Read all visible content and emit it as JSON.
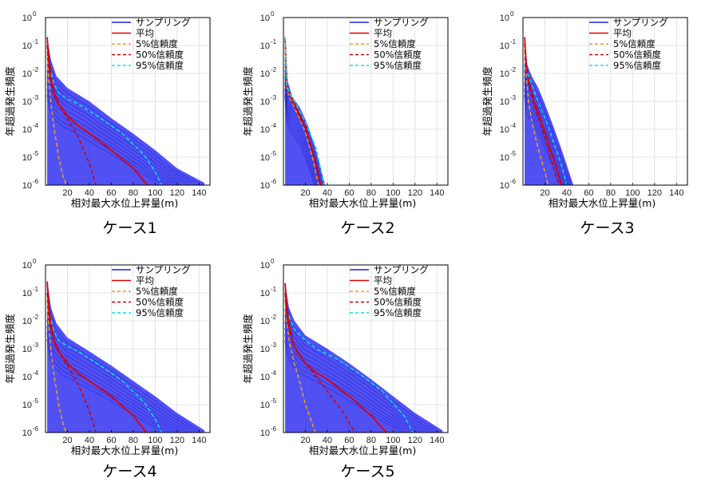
{
  "figure": {
    "ylabel": "年超過発生頻度",
    "xlabel": "相対最大水位上昇量(m)",
    "legend": [
      {
        "label": "サンプリング",
        "color": "#2222dd",
        "dash": "solid"
      },
      {
        "label": "平均",
        "color": "#dd0000",
        "dash": "solid"
      },
      {
        "label": " 5%信頼度",
        "color": "#e8a020",
        "dash": "dashed"
      },
      {
        "label": "50%信頼度",
        "color": "#cc0000",
        "dash": "dashed"
      },
      {
        "label": "95%信頼度",
        "color": "#00e5ee",
        "dash": "dashed"
      }
    ]
  },
  "chart_data": [
    {
      "type": "line",
      "caption": "ケース1",
      "xlim": [
        0,
        150
      ],
      "ylim": [
        1e-06,
        1
      ],
      "yscale": "log",
      "x_ticks": [
        20,
        40,
        60,
        80,
        100,
        120,
        140
      ],
      "y_tick_exponents": [
        0,
        -1,
        -2,
        -3,
        -4,
        -5,
        -6
      ],
      "sampling_spread": [
        [
          1.5,
          0.2
        ],
        [
          5,
          0.03
        ],
        [
          10,
          0.008
        ],
        [
          20,
          0.003
        ],
        [
          40,
          0.001
        ],
        [
          60,
          0.00025
        ],
        [
          80,
          7e-05
        ],
        [
          100,
          1.8e-05
        ],
        [
          120,
          4e-06
        ],
        [
          145,
          1.2e-06
        ]
      ],
      "series": [
        {
          "name": "平均",
          "x": [
            1.5,
            3,
            5,
            8,
            12,
            20,
            30,
            40,
            60,
            80,
            93
          ],
          "y": [
            0.2,
            0.03,
            0.008,
            0.002,
            0.0008,
            0.0003,
            0.00013,
            7e-05,
            1.8e-05,
            4e-06,
            1e-06
          ]
        },
        {
          "name": " 5%信頼度",
          "x": [
            1.5,
            3,
            5,
            8,
            12,
            16,
            19
          ],
          "y": [
            0.05,
            0.006,
            0.0008,
            0.0001,
            1e-05,
            2e-06,
            1e-06
          ]
        },
        {
          "name": "50%信頼度",
          "x": [
            1.5,
            3,
            5,
            10,
            20,
            30,
            40,
            46
          ],
          "y": [
            0.1,
            0.015,
            0.004,
            0.001,
            0.00025,
            5e-05,
            6e-06,
            1e-06
          ]
        },
        {
          "name": "95%信頼度",
          "x": [
            5,
            8,
            12,
            20,
            30,
            50,
            70,
            90,
            100,
            106
          ],
          "y": [
            0.01,
            0.004,
            0.002,
            0.0012,
            0.0008,
            0.00025,
            7e-05,
            1.2e-05,
            3e-06,
            1e-06
          ]
        }
      ]
    },
    {
      "type": "line",
      "caption": "ケース2",
      "xlim": [
        0,
        150
      ],
      "ylim": [
        1e-06,
        1
      ],
      "yscale": "log",
      "x_ticks": [
        20,
        40,
        60,
        80,
        100,
        120,
        140
      ],
      "y_tick_exponents": [
        0,
        -1,
        -2,
        -3,
        -4,
        -5,
        -6
      ],
      "sampling_spread": [
        [
          1.5,
          0.2
        ],
        [
          4,
          0.005
        ],
        [
          8,
          0.0015
        ],
        [
          15,
          0.0006
        ],
        [
          22,
          0.00015
        ],
        [
          28,
          3e-05
        ],
        [
          33,
          6e-06
        ],
        [
          38,
          1e-06
        ]
      ],
      "series": [
        {
          "name": "平均",
          "x": [
            1.5,
            3,
            5,
            10,
            20,
            28,
            34
          ],
          "y": [
            0.2,
            0.004,
            0.002,
            0.0008,
            0.00012,
            1e-05,
            1e-06
          ]
        },
        {
          "name": " 5%信頼度",
          "x": [
            1.5,
            3,
            5,
            10,
            20,
            27,
            32
          ],
          "y": [
            0.15,
            0.003,
            0.0015,
            0.0006,
            8e-05,
            8e-06,
            1e-06
          ]
        },
        {
          "name": "50%信頼度",
          "x": [
            1.5,
            3,
            5,
            10,
            20,
            28,
            34
          ],
          "y": [
            0.18,
            0.0035,
            0.0018,
            0.0007,
            0.0001,
            1e-05,
            1e-06
          ]
        },
        {
          "name": "95%信頼度",
          "x": [
            1.5,
            3,
            5,
            10,
            20,
            30,
            37
          ],
          "y": [
            0.2,
            0.004,
            0.002,
            0.001,
            0.00018,
            2e-05,
            1e-06
          ]
        }
      ]
    },
    {
      "type": "line",
      "caption": "ケース3",
      "xlim": [
        0,
        150
      ],
      "ylim": [
        1e-06,
        1
      ],
      "yscale": "log",
      "x_ticks": [
        20,
        40,
        60,
        80,
        100,
        120,
        140
      ],
      "y_tick_exponents": [
        0,
        -1,
        -2,
        -3,
        -4,
        -5,
        -6
      ],
      "sampling_spread": [
        [
          1.5,
          0.2
        ],
        [
          4,
          0.02
        ],
        [
          8,
          0.008
        ],
        [
          14,
          0.003
        ],
        [
          20,
          0.0008
        ],
        [
          28,
          0.00012
        ],
        [
          35,
          2e-05
        ],
        [
          42,
          3e-06
        ],
        [
          46,
          1e-06
        ]
      ],
      "series": [
        {
          "name": "平均",
          "x": [
            1.5,
            3,
            6,
            10,
            15,
            20,
            25,
            30,
            35
          ],
          "y": [
            0.2,
            0.02,
            0.004,
            0.001,
            0.0003,
            8e-05,
            2e-05,
            5e-06,
            1e-06
          ]
        },
        {
          "name": " 5%信頼度",
          "x": [
            1.5,
            3,
            5,
            8,
            12,
            16,
            20,
            23
          ],
          "y": [
            0.08,
            0.008,
            0.001,
            0.0002,
            4e-05,
            1e-05,
            3e-06,
            1e-06
          ]
        },
        {
          "name": "50%信頼度",
          "x": [
            1.5,
            3,
            6,
            10,
            15,
            20,
            25,
            30,
            33
          ],
          "y": [
            0.12,
            0.015,
            0.003,
            0.0008,
            0.0002,
            5e-05,
            1e-05,
            2e-06,
            1e-06
          ]
        },
        {
          "name": "95%信頼度",
          "x": [
            4,
            8,
            12,
            18,
            24,
            30,
            36,
            40
          ],
          "y": [
            0.01,
            0.004,
            0.0015,
            0.0004,
            0.0001,
            2e-05,
            4e-06,
            1e-06
          ]
        }
      ]
    },
    {
      "type": "line",
      "caption": "ケース4",
      "xlim": [
        0,
        150
      ],
      "ylim": [
        1e-06,
        1
      ],
      "yscale": "log",
      "x_ticks": [
        20,
        40,
        60,
        80,
        100,
        120,
        140
      ],
      "y_tick_exponents": [
        0,
        -1,
        -2,
        -3,
        -4,
        -5,
        -6
      ],
      "sampling_spread": [
        [
          1.5,
          0.3
        ],
        [
          5,
          0.03
        ],
        [
          10,
          0.008
        ],
        [
          20,
          0.0025
        ],
        [
          40,
          0.0008
        ],
        [
          60,
          0.00025
        ],
        [
          80,
          7e-05
        ],
        [
          100,
          2e-05
        ],
        [
          120,
          5e-06
        ],
        [
          145,
          1.2e-06
        ]
      ],
      "series": [
        {
          "name": "平均",
          "x": [
            1.5,
            3,
            5,
            8,
            12,
            20,
            30,
            40,
            60,
            80,
            92
          ],
          "y": [
            0.25,
            0.03,
            0.008,
            0.002,
            0.0008,
            0.0003,
            0.00013,
            7e-05,
            2e-05,
            4e-06,
            1e-06
          ]
        },
        {
          "name": " 5%信頼度",
          "x": [
            1.5,
            3,
            5,
            8,
            12,
            16,
            19
          ],
          "y": [
            0.05,
            0.006,
            0.0008,
            0.0001,
            1e-05,
            2e-06,
            1e-06
          ]
        },
        {
          "name": "50%信頼度",
          "x": [
            1.5,
            3,
            5,
            10,
            20,
            30,
            40,
            46
          ],
          "y": [
            0.1,
            0.015,
            0.004,
            0.001,
            0.00025,
            5e-05,
            6e-06,
            1e-06
          ]
        },
        {
          "name": "95%信頼度",
          "x": [
            5,
            8,
            12,
            20,
            30,
            50,
            70,
            90,
            100,
            106
          ],
          "y": [
            0.01,
            0.004,
            0.002,
            0.0012,
            0.0008,
            0.00025,
            7e-05,
            1.2e-05,
            3e-06,
            1e-06
          ]
        }
      ]
    },
    {
      "type": "line",
      "caption": "ケース5",
      "xlim": [
        0,
        150
      ],
      "ylim": [
        1e-06,
        1
      ],
      "yscale": "log",
      "x_ticks": [
        20,
        40,
        60,
        80,
        100,
        120,
        140
      ],
      "y_tick_exponents": [
        0,
        -1,
        -2,
        -3,
        -4,
        -5,
        -6
      ],
      "sampling_spread": [
        [
          1.5,
          0.25
        ],
        [
          5,
          0.03
        ],
        [
          10,
          0.01
        ],
        [
          20,
          0.003
        ],
        [
          40,
          0.001
        ],
        [
          60,
          0.0003
        ],
        [
          80,
          8e-05
        ],
        [
          100,
          2e-05
        ],
        [
          120,
          5e-06
        ],
        [
          145,
          1.2e-06
        ]
      ],
      "series": [
        {
          "name": "平均",
          "x": [
            1.5,
            3,
            5,
            8,
            12,
            20,
            30,
            40,
            60,
            80,
            94
          ],
          "y": [
            0.22,
            0.03,
            0.008,
            0.002,
            0.0008,
            0.0003,
            0.00014,
            8e-05,
            2e-05,
            4e-06,
            1e-06
          ]
        },
        {
          "name": " 5%信頼度",
          "x": [
            1.5,
            3,
            5,
            10,
            15,
            20,
            25,
            29
          ],
          "y": [
            0.06,
            0.01,
            0.002,
            0.0003,
            6e-05,
            1e-05,
            3e-06,
            1e-06
          ]
        },
        {
          "name": "50%信頼度",
          "x": [
            1.5,
            3,
            5,
            10,
            20,
            30,
            40,
            55,
            65
          ],
          "y": [
            0.1,
            0.015,
            0.005,
            0.0012,
            0.0003,
            0.0001,
            3e-05,
            5e-06,
            1e-06
          ]
        },
        {
          "name": "95%信頼度",
          "x": [
            5,
            10,
            20,
            30,
            50,
            70,
            90,
            110,
            118
          ],
          "y": [
            0.015,
            0.005,
            0.002,
            0.001,
            0.0004,
            0.00012,
            3e-05,
            4e-06,
            1e-06
          ]
        }
      ]
    }
  ]
}
